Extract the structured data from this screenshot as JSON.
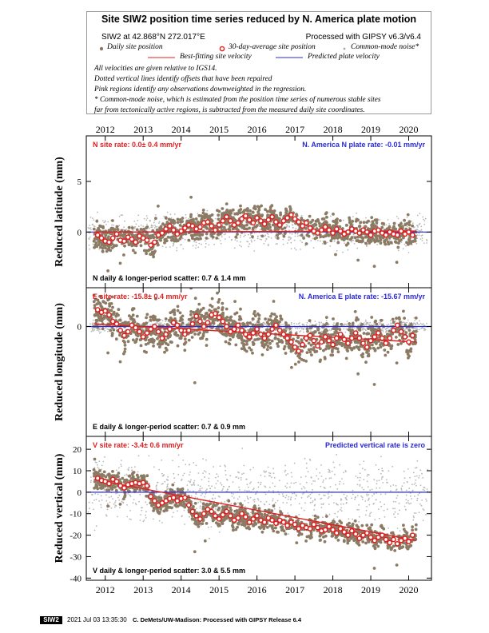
{
  "legend": {
    "title": "Site SIW2 position time series reduced by N. America plate motion",
    "site_location": "SIW2 at 42.868°N 272.017°E",
    "processing": "Processed with GIPSY v6.3/v6.4",
    "daily_label": "Daily site position",
    "avg_label": "30-day-average site position",
    "cm_label": "Common-mode noise*",
    "bestfit_label": "Best-fitting site velocity",
    "predicted_label": "Predicted plate velocity",
    "notes": [
      "All velocities are given relative to IGS14.",
      "Dotted vertical lines identify offsets that have been repaired",
      "Pink regions identify any observations downweighted in the regression.",
      "* Common-mode noise, which is estimated from the position time series of numerous stable sites",
      "far from tectonically active regions, is subtracted from the measured daily site coordinates."
    ],
    "colors": {
      "daily": "#8c7b64",
      "avg": "#e02020",
      "cm": "#b8b8b8",
      "bestfit": "#e02020",
      "predicted": "#2a2ad8"
    }
  },
  "chart_data": [
    {
      "type": "scatter",
      "component": "N",
      "ylabel": "Reduced latitude (mm)",
      "xlim": [
        2011.5,
        2020.6
      ],
      "ylim": [
        -5.5,
        9.5
      ],
      "x_ticks": [
        2012,
        2013,
        2014,
        2015,
        2016,
        2017,
        2018,
        2019,
        2020
      ],
      "y_ticks": [
        0,
        5
      ],
      "site_rate": "N site rate:   0.0± 0.4 mm/yr",
      "plate_rate": "N. America N plate rate: -0.01 mm/yr",
      "scatter": "N daily & longer-period scatter:   0.7 &   1.4 mm",
      "bestfit_line": {
        "x": [
          2011.7,
          2020.2
        ],
        "y": [
          0.0,
          0.1
        ]
      },
      "predicted_line": {
        "x": [
          2011.5,
          2020.6
        ],
        "y": [
          0.0,
          0.0
        ]
      },
      "monthly": {
        "x": [
          2011.8,
          2011.9,
          2012.0,
          2012.1,
          2012.2,
          2012.3,
          2012.4,
          2012.5,
          2012.6,
          2012.7,
          2012.8,
          2012.9,
          2013.0,
          2013.1,
          2013.2,
          2013.3,
          2013.4,
          2013.5,
          2013.6,
          2013.7,
          2013.8,
          2013.9,
          2014.0,
          2014.1,
          2014.2,
          2014.3,
          2014.4,
          2014.5,
          2014.6,
          2014.7,
          2014.8,
          2014.9,
          2015.0,
          2015.1,
          2015.2,
          2015.3,
          2015.4,
          2015.5,
          2015.6,
          2015.7,
          2015.8,
          2015.9,
          2016.0,
          2016.1,
          2016.2,
          2016.3,
          2016.4,
          2016.5,
          2016.6,
          2016.7,
          2016.8,
          2016.9,
          2017.0,
          2017.1,
          2017.2,
          2017.3,
          2017.4,
          2017.5,
          2017.6,
          2017.7,
          2017.8,
          2017.9,
          2018.0,
          2018.1,
          2018.2,
          2018.3,
          2018.4,
          2018.5,
          2018.6,
          2018.7,
          2018.8,
          2018.9,
          2019.0,
          2019.1,
          2019.2,
          2019.3,
          2019.4,
          2019.5,
          2019.6,
          2019.7,
          2019.8,
          2019.9,
          2020.0,
          2020.1
        ],
        "y": [
          -0.3,
          -0.6,
          -0.9,
          -1.0,
          -0.6,
          -0.2,
          -0.8,
          -0.9,
          -0.5,
          -0.7,
          -1.0,
          -0.4,
          -0.6,
          -0.8,
          -1.3,
          -1.0,
          -0.3,
          -0.1,
          0.3,
          0.6,
          0.2,
          -0.2,
          0.1,
          0.4,
          0.7,
          0.6,
          0.3,
          0.5,
          0.9,
          1.0,
          0.6,
          0.2,
          0.7,
          1.1,
          1.5,
          1.1,
          0.7,
          0.9,
          1.3,
          1.6,
          1.2,
          0.9,
          1.4,
          1.1,
          0.8,
          1.2,
          1.5,
          1.0,
          0.7,
          1.1,
          1.4,
          1.7,
          1.3,
          1.0,
          0.6,
          0.9,
          0.4,
          0.1,
          -0.1,
          0.2,
          0.5,
          0.2,
          -0.1,
          0.3,
          0.1,
          -0.2,
          0.0,
          0.3,
          0.1,
          -0.1,
          0.2,
          0.0,
          -0.3,
          0.1,
          0.2,
          -0.1,
          -0.3,
          0.0,
          -0.2,
          -0.3,
          0.1,
          -0.2,
          0.0,
          -0.3
        ]
      }
    },
    {
      "type": "scatter",
      "component": "E",
      "ylabel": "Reduced longitude (mm)",
      "xlim": [
        2011.5,
        2020.6
      ],
      "ylim": [
        -8.5,
        3.0
      ],
      "x_ticks": [
        2012,
        2013,
        2014,
        2015,
        2016,
        2017,
        2018,
        2019,
        2020
      ],
      "y_ticks": [
        0
      ],
      "site_rate": "E site rate: -15.8± 0.4 mm/yr",
      "plate_rate": "N. America E plate rate: -15.67 mm/yr",
      "scatter": "E daily & longer-period scatter:   0.7 &   0.9 mm",
      "bestfit_line": {
        "x": [
          2011.7,
          2020.2
        ],
        "y": [
          0.2,
          -1.2
        ]
      },
      "predicted_line": {
        "x": [
          2011.5,
          2020.6
        ],
        "y": [
          0.0,
          0.0
        ]
      },
      "monthly": {
        "x": [
          2011.8,
          2011.9,
          2012.0,
          2012.1,
          2012.2,
          2012.3,
          2012.4,
          2012.5,
          2012.6,
          2012.7,
          2012.8,
          2012.9,
          2013.0,
          2013.1,
          2013.2,
          2013.3,
          2013.4,
          2013.5,
          2013.6,
          2013.7,
          2013.8,
          2013.9,
          2014.0,
          2014.1,
          2014.2,
          2014.3,
          2014.4,
          2014.5,
          2014.6,
          2014.7,
          2014.8,
          2014.9,
          2015.0,
          2015.1,
          2015.2,
          2015.3,
          2015.4,
          2015.5,
          2015.6,
          2015.7,
          2015.8,
          2015.9,
          2016.0,
          2016.1,
          2016.2,
          2016.3,
          2016.4,
          2016.5,
          2016.6,
          2016.7,
          2016.8,
          2016.9,
          2017.0,
          2017.1,
          2017.2,
          2017.3,
          2017.4,
          2017.5,
          2017.6,
          2017.7,
          2017.8,
          2017.9,
          2018.0,
          2018.1,
          2018.2,
          2018.3,
          2018.4,
          2018.5,
          2018.6,
          2018.7,
          2018.8,
          2018.9,
          2019.0,
          2019.1,
          2019.2,
          2019.3,
          2019.4,
          2019.5,
          2019.6,
          2019.7,
          2019.8,
          2019.9,
          2020.0,
          2020.1
        ],
        "y": [
          1.3,
          1.1,
          1.2,
          0.9,
          0.4,
          0.2,
          -0.3,
          -0.7,
          -0.4,
          0.1,
          -0.1,
          -0.4,
          -0.8,
          -0.5,
          -0.2,
          0.0,
          -0.4,
          -0.9,
          -0.6,
          -0.2,
          0.3,
          0.1,
          -0.3,
          -0.6,
          -0.3,
          0.2,
          0.8,
          0.4,
          0.0,
          0.3,
          0.9,
          1.0,
          0.7,
          0.4,
          0.0,
          -0.4,
          -0.2,
          0.1,
          -0.3,
          -0.6,
          -0.8,
          -0.5,
          -0.2,
          -0.6,
          -0.9,
          -0.6,
          -0.2,
          0.1,
          -0.3,
          -0.6,
          -0.9,
          -1.2,
          -1.6,
          -1.9,
          -1.4,
          -0.9,
          -0.7,
          -1.1,
          -1.5,
          -1.2,
          -0.8,
          -1.1,
          -1.4,
          -0.9,
          -0.6,
          -1.0,
          -1.3,
          -0.9,
          -0.5,
          -0.9,
          -1.3,
          -1.6,
          -1.1,
          -0.8,
          -0.5,
          -0.9,
          -1.3,
          -0.9,
          -0.3,
          0.1,
          -0.4,
          -0.8,
          -1.2,
          -0.7
        ]
      }
    },
    {
      "type": "scatter",
      "component": "V",
      "ylabel": "Reduced vertical (mm)",
      "xlim": [
        2011.5,
        2020.6
      ],
      "ylim": [
        -41,
        26
      ],
      "x_ticks": [
        2012,
        2013,
        2014,
        2015,
        2016,
        2017,
        2018,
        2019,
        2020
      ],
      "y_ticks": [
        -40,
        -30,
        -20,
        -10,
        0,
        10,
        20
      ],
      "site_rate": "V site rate:  -3.4± 0.6 mm/yr",
      "plate_rate": "Predicted vertical rate is zero",
      "scatter": "V daily & longer-period scatter:   3.0 &   5.5 mm",
      "bestfit_line": {
        "x": [
          2011.7,
          2020.2
        ],
        "y": [
          6.0,
          -22.5
        ]
      },
      "predicted_line": {
        "x": [
          2011.5,
          2020.6
        ],
        "y": [
          0.0,
          0.0
        ]
      },
      "monthly": {
        "x": [
          2011.8,
          2011.9,
          2012.0,
          2012.1,
          2012.2,
          2012.3,
          2012.4,
          2012.5,
          2012.6,
          2012.7,
          2012.8,
          2012.9,
          2013.0,
          2013.1,
          2013.2,
          2013.3,
          2013.4,
          2013.5,
          2013.6,
          2013.7,
          2013.8,
          2013.9,
          2014.0,
          2014.1,
          2014.2,
          2014.3,
          2014.4,
          2014.5,
          2014.6,
          2014.7,
          2014.8,
          2014.9,
          2015.0,
          2015.1,
          2015.2,
          2015.3,
          2015.4,
          2015.5,
          2015.6,
          2015.7,
          2015.8,
          2015.9,
          2016.0,
          2016.1,
          2016.2,
          2016.3,
          2016.4,
          2016.5,
          2016.6,
          2016.7,
          2016.8,
          2016.9,
          2017.0,
          2017.1,
          2017.2,
          2017.3,
          2017.4,
          2017.5,
          2017.6,
          2017.7,
          2017.8,
          2017.9,
          2018.0,
          2018.1,
          2018.2,
          2018.3,
          2018.4,
          2018.5,
          2018.6,
          2018.7,
          2018.8,
          2018.9,
          2019.0,
          2019.1,
          2019.2,
          2019.3,
          2019.4,
          2019.5,
          2019.6,
          2019.7,
          2019.8,
          2019.9,
          2020.0,
          2020.1
        ],
        "y": [
          6.5,
          5.5,
          5.0,
          4.0,
          6.0,
          5.0,
          3.0,
          2.0,
          3.5,
          4.0,
          4.5,
          4.0,
          4.5,
          3.0,
          -2.0,
          -4.0,
          -6.0,
          -5.0,
          -4.0,
          -3.0,
          -2.5,
          -4.0,
          -3.0,
          -2.5,
          -6.0,
          -9.0,
          -11.0,
          -12.5,
          -10.0,
          -8.0,
          -9.0,
          -11.0,
          -12.5,
          -10.5,
          -9.0,
          -11.0,
          -13.0,
          -12.0,
          -10.0,
          -11.5,
          -14.0,
          -12.5,
          -11.0,
          -13.0,
          -14.0,
          -12.0,
          -13.0,
          -14.5,
          -13.0,
          -14.0,
          -15.5,
          -14.0,
          -15.0,
          -17.0,
          -15.5,
          -16.5,
          -17.0,
          -15.0,
          -16.5,
          -18.0,
          -17.5,
          -16.0,
          -17.5,
          -19.0,
          -17.0,
          -18.5,
          -20.0,
          -18.0,
          -19.5,
          -21.5,
          -20.0,
          -19.0,
          -21.0,
          -22.5,
          -21.0,
          -20.0,
          -22.0,
          -23.5,
          -22.0,
          -24.0,
          -22.5,
          -21.5,
          -23.0,
          -20.0
        ]
      }
    }
  ],
  "footer": {
    "badge": "SIW2",
    "date": "2021 Jul 03 13:35:30",
    "credit": "C. DeMets/UW-Madison: Processed with GIPSY Release 6.4"
  }
}
